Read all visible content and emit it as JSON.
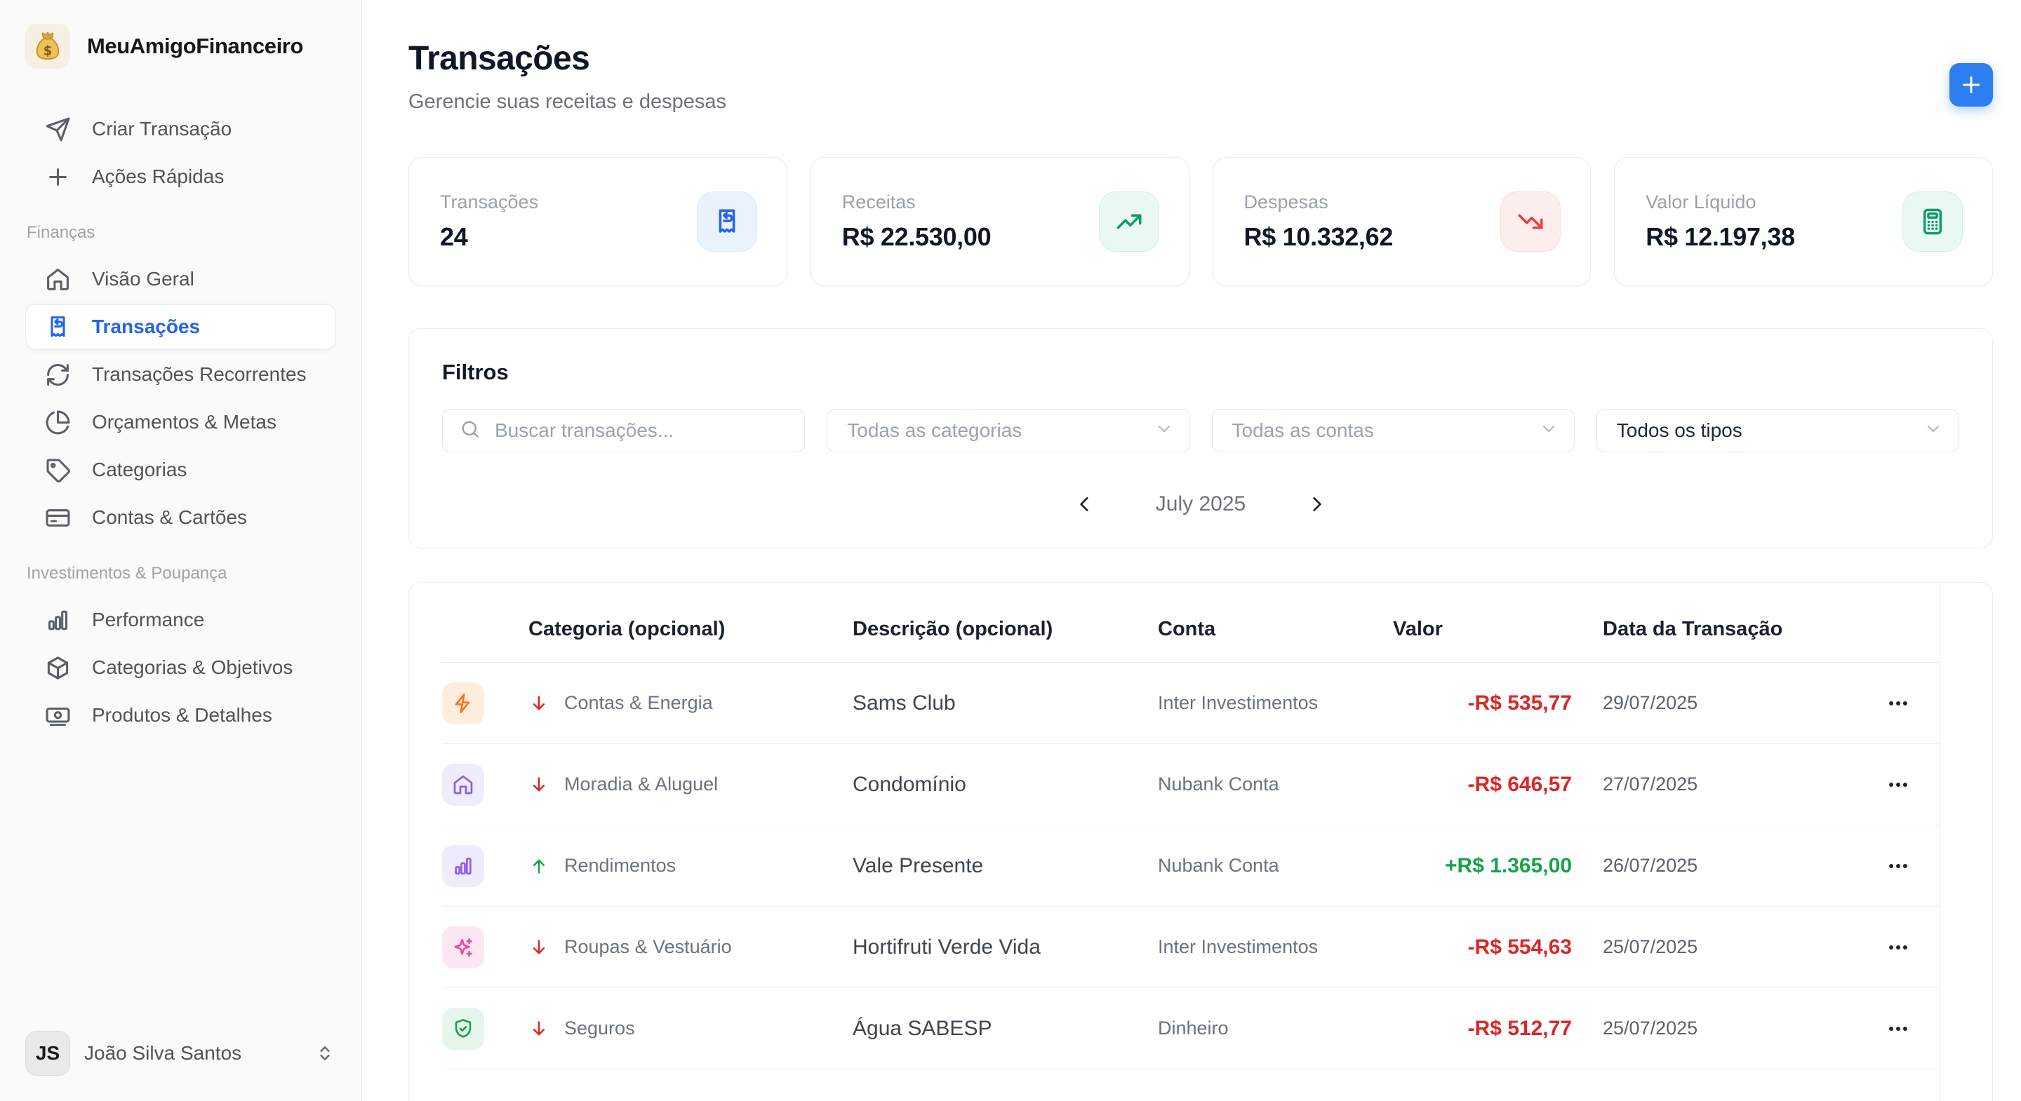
{
  "app": {
    "name": "MeuAmigoFinanceiro"
  },
  "colors": {
    "primary": "#2563eb",
    "income": "#16a34a",
    "expense": "#dc2626"
  },
  "sidebar": {
    "quick_actions": [
      {
        "label": "Criar Transação",
        "icon": "send-icon"
      },
      {
        "label": "Ações Rápidas",
        "icon": "plus-icon"
      }
    ],
    "sections": [
      {
        "label": "Finanças",
        "items": [
          {
            "label": "Visão Geral",
            "icon": "home-icon",
            "active": false
          },
          {
            "label": "Transações",
            "icon": "receipt-icon",
            "active": true
          },
          {
            "label": "Transações Recorrentes",
            "icon": "refresh-cw-icon",
            "active": false
          },
          {
            "label": "Orçamentos & Metas",
            "icon": "pie-chart-icon",
            "active": false
          },
          {
            "label": "Categorias",
            "icon": "tag-icon",
            "active": false
          },
          {
            "label": "Contas & Cartões",
            "icon": "credit-card-icon",
            "active": false
          }
        ]
      },
      {
        "label": "Investimentos & Poupança",
        "items": [
          {
            "label": "Performance",
            "icon": "bar-chart-icon",
            "active": false
          },
          {
            "label": "Categorias & Objetivos",
            "icon": "cube-icon",
            "active": false
          },
          {
            "label": "Produtos & Detalhes",
            "icon": "banknote-icon",
            "active": false
          }
        ]
      }
    ],
    "user": {
      "initials": "JS",
      "name": "João Silva Santos"
    }
  },
  "header": {
    "title": "Transações",
    "subtitle": "Gerencie suas receitas e despesas"
  },
  "stats": [
    {
      "label": "Transações",
      "value": "24",
      "icon": "receipt-icon",
      "accent": "blue"
    },
    {
      "label": "Receitas",
      "value": "R$ 22.530,00",
      "icon": "trending-up-icon",
      "accent": "green"
    },
    {
      "label": "Despesas",
      "value": "R$ 10.332,62",
      "icon": "trending-down-icon",
      "accent": "red"
    },
    {
      "label": "Valor Líquido",
      "value": "R$ 12.197,38",
      "icon": "calculator-icon",
      "accent": "green"
    }
  ],
  "filters": {
    "title": "Filtros",
    "search_placeholder": "Buscar transações...",
    "category_filter": "Todas as categorias",
    "account_filter": "Todas as contas",
    "type_filter": "Todos os tipos",
    "month": "July 2025"
  },
  "table": {
    "columns": [
      "Categoria (opcional)",
      "Descrição (opcional)",
      "Conta",
      "Valor",
      "Data da Transação"
    ],
    "rows": [
      {
        "category": "Contas & Energia",
        "category_icon": "zap-icon",
        "category_color": "orange",
        "direction": "down",
        "description": "Sams Club",
        "account": "Inter Investimentos",
        "amount": "-R$ 535,77",
        "amount_type": "expense",
        "date": "29/07/2025"
      },
      {
        "category": "Moradia & Aluguel",
        "category_icon": "home-icon",
        "category_color": "purple",
        "direction": "down",
        "description": "Condomínio",
        "account": "Nubank Conta",
        "amount": "-R$ 646,57",
        "amount_type": "expense",
        "date": "27/07/2025"
      },
      {
        "category": "Rendimentos",
        "category_icon": "bar-chart-icon",
        "category_color": "purple",
        "direction": "up",
        "description": "Vale Presente",
        "account": "Nubank Conta",
        "amount": "+R$ 1.365,00",
        "amount_type": "income",
        "date": "26/07/2025"
      },
      {
        "category": "Roupas & Vestuário",
        "category_icon": "sparkles-icon",
        "category_color": "pink",
        "direction": "down",
        "description": "Hortifruti Verde Vida",
        "account": "Inter Investimentos",
        "amount": "-R$ 554,63",
        "amount_type": "expense",
        "date": "25/07/2025"
      },
      {
        "category": "Seguros",
        "category_icon": "shield-check-icon",
        "category_color": "green",
        "direction": "down",
        "description": "Água SABESP",
        "account": "Dinheiro",
        "amount": "-R$ 512,77",
        "amount_type": "expense",
        "date": "25/07/2025"
      }
    ]
  }
}
